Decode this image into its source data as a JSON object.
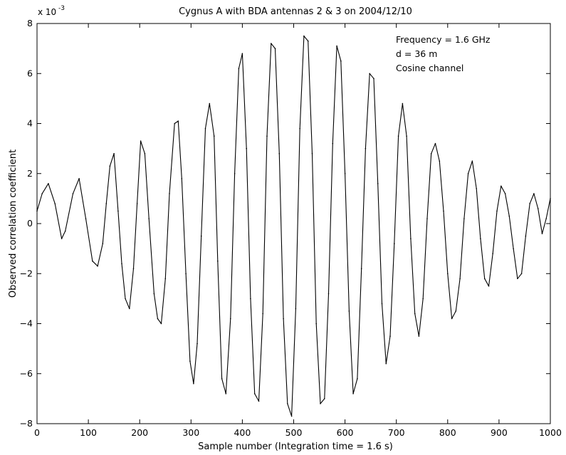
{
  "chart_data": {
    "type": "line",
    "title": "Cygnus A with BDA antennas 2 & 3 on 2004/12/10",
    "xlabel": "Sample number (Integration time = 1.6 s)",
    "ylabel": "Observed correlation coefficient",
    "y_multiplier": "x 10",
    "y_multiplier_exponent": "-3",
    "xlim": [
      0,
      1000
    ],
    "ylim": [
      -8,
      8
    ],
    "x_ticks": [
      0,
      100,
      200,
      300,
      400,
      500,
      600,
      700,
      800,
      900,
      1000
    ],
    "x_tick_labels": [
      "0",
      "100",
      "200",
      "300",
      "400",
      "500",
      "600",
      "700",
      "800",
      "900",
      "1000"
    ],
    "y_ticks": [
      -8,
      -6,
      -4,
      -2,
      0,
      2,
      4,
      6,
      8
    ],
    "y_tick_labels": [
      "−8",
      "−6",
      "−4",
      "−2",
      "0",
      "2",
      "4",
      "6",
      "8"
    ],
    "annotations": [
      "Frequency = 1.6 GHz",
      "d = 36 m",
      "Cosine channel"
    ],
    "grid": false,
    "legend": "none",
    "line_color": "#000000",
    "series": [
      {
        "x": [
          0,
          10,
          22,
          35,
          48,
          55,
          70,
          82,
          95,
          108,
          118,
          128,
          135,
          142,
          150,
          158,
          165,
          172,
          180,
          188,
          195,
          202,
          210,
          218,
          228,
          235,
          242,
          250,
          258,
          268,
          275,
          282,
          290,
          298,
          305,
          312,
          320,
          328,
          336,
          345,
          352,
          360,
          368,
          377,
          385,
          393,
          400,
          408,
          416,
          424,
          432,
          440,
          448,
          456,
          464,
          472,
          480,
          488,
          496,
          504,
          512,
          520,
          528,
          536,
          544,
          552,
          560,
          568,
          576,
          584,
          592,
          600,
          608,
          616,
          624,
          632,
          640,
          648,
          656,
          664,
          672,
          680,
          688,
          696,
          704,
          712,
          720,
          728,
          736,
          744,
          752,
          760,
          768,
          776,
          784,
          792,
          800,
          808,
          816,
          824,
          832,
          840,
          848,
          856,
          864,
          872,
          880,
          888,
          896,
          904,
          912,
          920,
          928,
          936,
          944,
          952,
          960,
          968,
          976,
          984,
          992,
          1000
        ],
        "y": [
          0.5,
          1.2,
          1.6,
          0.8,
          -0.6,
          -0.3,
          1.2,
          1.8,
          0.2,
          -1.5,
          -1.7,
          -0.8,
          0.8,
          2.3,
          2.8,
          0.5,
          -1.6,
          -3.0,
          -3.4,
          -1.8,
          0.8,
          3.3,
          2.8,
          0.2,
          -2.8,
          -3.8,
          -4.0,
          -2.2,
          1.2,
          4.0,
          4.1,
          1.8,
          -2.0,
          -5.5,
          -6.4,
          -4.8,
          -0.5,
          3.8,
          4.8,
          3.5,
          -1.5,
          -6.2,
          -6.8,
          -3.8,
          2.0,
          6.2,
          6.8,
          3.0,
          -3.0,
          -6.8,
          -7.1,
          -3.6,
          3.5,
          7.2,
          7.0,
          2.8,
          -3.8,
          -7.2,
          -7.7,
          -3.4,
          3.8,
          7.5,
          7.3,
          2.8,
          -4.0,
          -7.2,
          -7.0,
          -2.8,
          3.2,
          7.1,
          6.5,
          2.0,
          -3.5,
          -6.8,
          -6.2,
          -1.8,
          3.0,
          6.0,
          5.8,
          1.6,
          -3.2,
          -5.6,
          -4.5,
          -0.8,
          3.5,
          4.8,
          3.5,
          -0.6,
          -3.6,
          -4.5,
          -3.0,
          0.2,
          2.8,
          3.2,
          2.5,
          0.5,
          -2.0,
          -3.8,
          -3.5,
          -2.2,
          0.2,
          2.0,
          2.5,
          1.4,
          -0.6,
          -2.2,
          -2.5,
          -1.2,
          0.5,
          1.5,
          1.2,
          0.3,
          -1.0,
          -2.2,
          -2.0,
          -0.5,
          0.8,
          1.2,
          0.6,
          -0.4,
          0.2,
          1.0
        ]
      }
    ]
  }
}
